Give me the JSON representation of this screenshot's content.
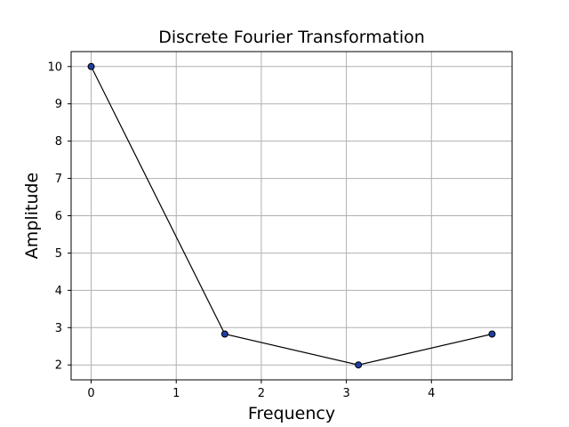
{
  "chart_data": {
    "type": "line",
    "title": "Discrete Fourier Transformation",
    "xlabel": "Frequency",
    "ylabel": "Amplitude",
    "x": [
      0,
      1.5708,
      3.1416,
      4.7124
    ],
    "y": [
      10,
      2.828,
      2,
      2.828
    ],
    "xlim": [
      -0.2356,
      4.948
    ],
    "ylim": [
      1.6,
      10.4
    ],
    "xticks": [
      0,
      1,
      2,
      3,
      4
    ],
    "yticks": [
      2,
      3,
      4,
      5,
      6,
      7,
      8,
      9,
      10
    ],
    "grid": true,
    "line_color": "#000000",
    "marker_face_color": "#1f3fa0",
    "marker_edge_color": "#000000"
  }
}
